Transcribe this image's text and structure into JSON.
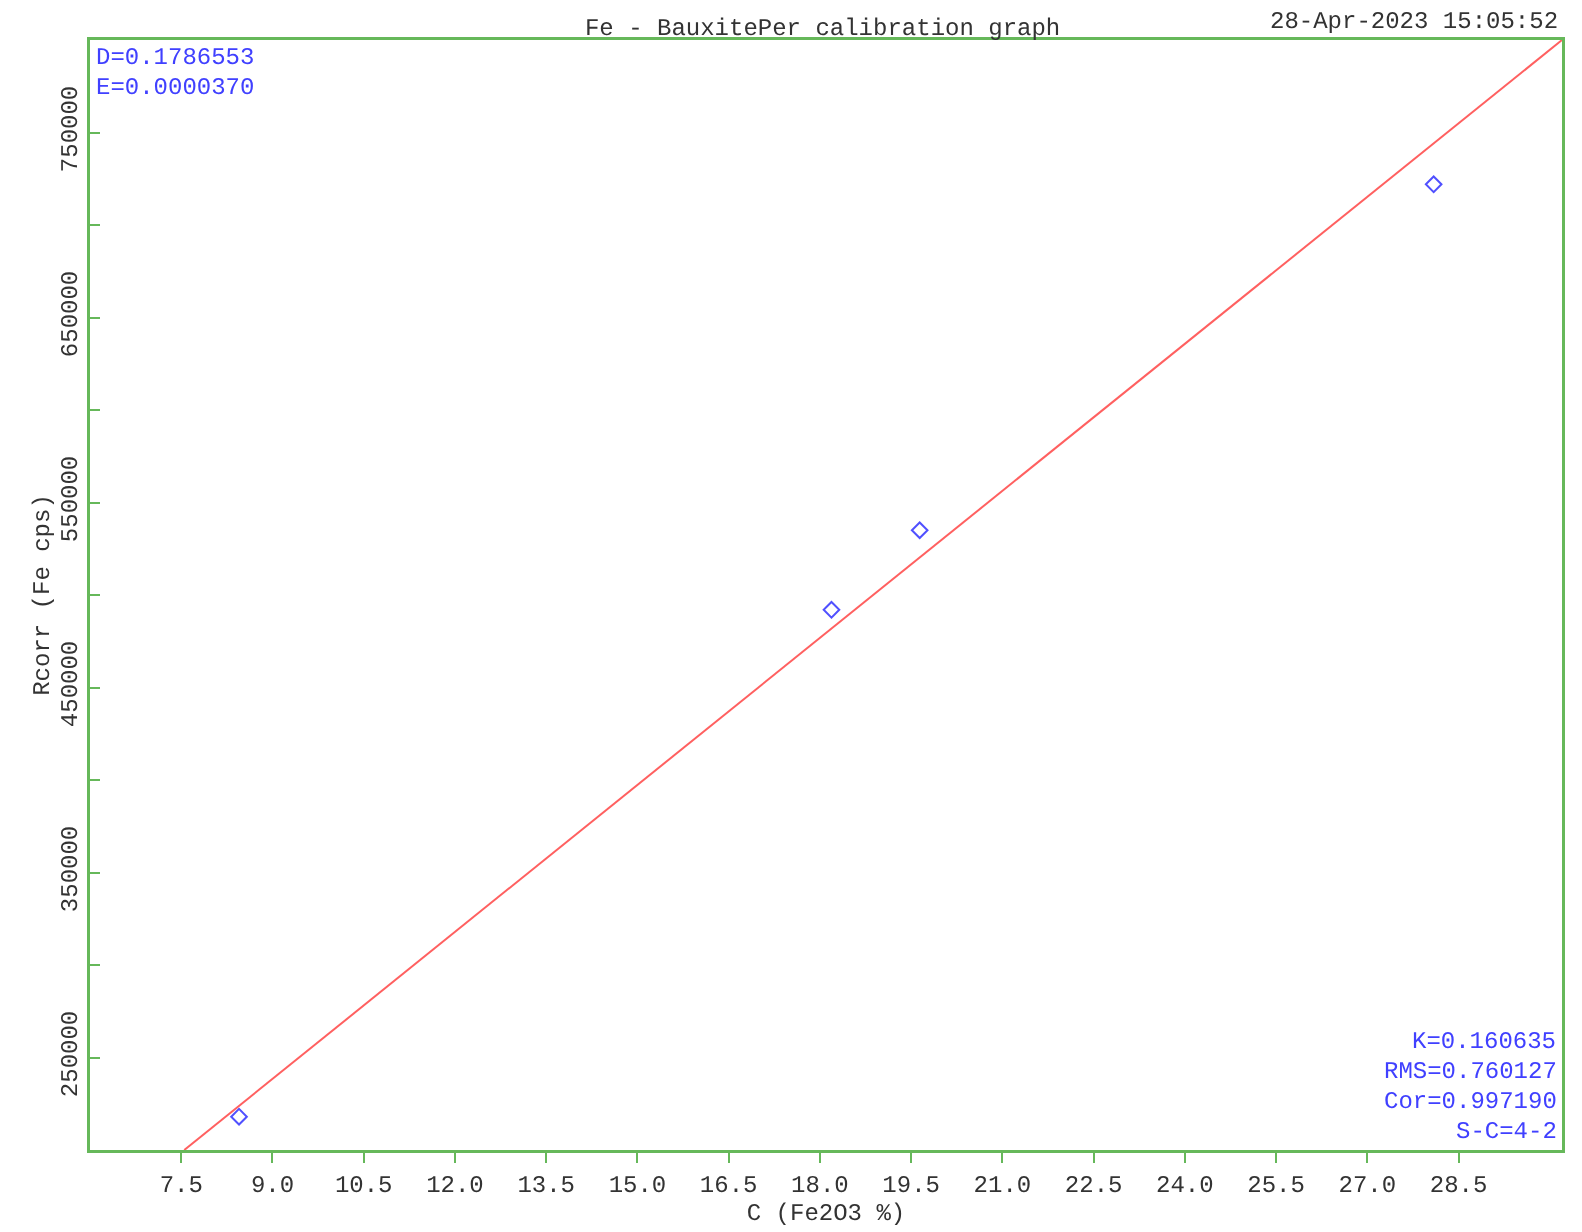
{
  "chart_data": {
    "type": "scatter",
    "title": "Fe - BauxitePer calibration graph",
    "xlabel": "C (Fe2O3 %)",
    "ylabel": "Rcorr (Fe cps)",
    "annotations": [
      "28-Apr-2023 15:05:52",
      "D=0.1786553",
      "E=0.0000370",
      "K=0.160635",
      "RMS=0.760127",
      "Cor=0.997190",
      "S-C=4-2"
    ],
    "series": [
      {
        "color": "#5050ff",
        "marker": "diamond",
        "x": [
          8.45,
          18.19,
          19.64,
          28.09
        ],
        "values": [
          218000,
          492000,
          535000,
          722000
        ]
      },
      {
        "type": "line",
        "marker": "none",
        "color": "#ff6060",
        "x": [
          7.55,
          30.2
        ],
        "values": [
          200000,
          800000
        ]
      }
    ],
    "grid": false,
    "xlim": [
      6.0,
      30.2
    ],
    "ylim": [
      200000,
      800000
    ],
    "xticks": [
      7.5,
      {
        "value": 9,
        "label": "9.0"
      },
      10.5,
      {
        "value": 12,
        "label": "12.0"
      },
      13.5,
      {
        "value": 15,
        "label": "15.0"
      },
      16.5,
      {
        "value": 18,
        "label": "18.0"
      },
      19.5,
      {
        "value": 21,
        "label": "21.0"
      },
      22.5,
      {
        "value": 24,
        "label": "24.0"
      },
      25.5,
      {
        "value": 27,
        "label": "27.0"
      },
      28.5
    ],
    "yticks": [
      250000,
      {
        "value": 300000,
        "label": null
      },
      350000,
      {
        "value": 400000,
        "label": null
      },
      450000,
      {
        "value": 500000,
        "label": null
      },
      550000,
      {
        "value": 600000,
        "label": null
      },
      650000,
      {
        "value": 700000,
        "label": null
      },
      750000
    ]
  }
}
